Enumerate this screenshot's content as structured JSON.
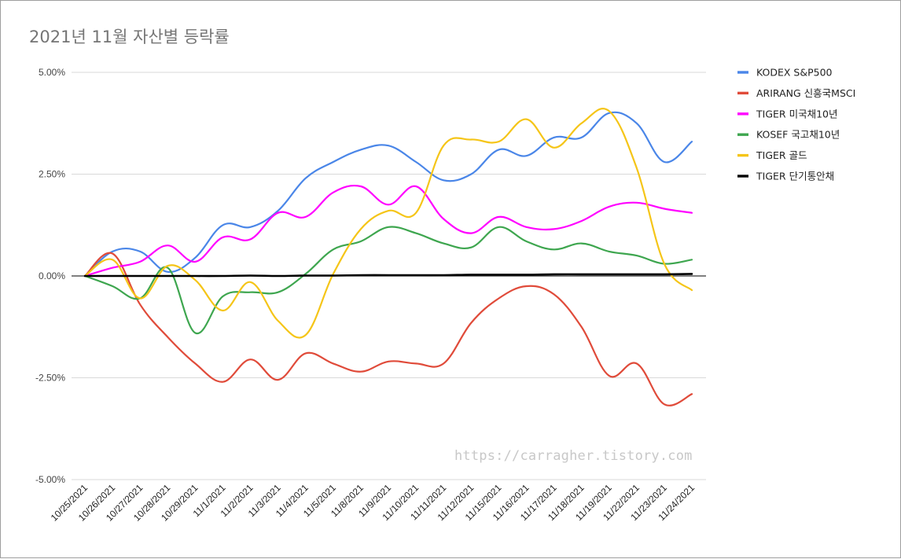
{
  "chart_data": {
    "type": "line",
    "title": "2021년 11월 자산별 등락률",
    "x": [
      "10/25/2021",
      "10/26/2021",
      "10/27/2021",
      "10/28/2021",
      "10/29/2021",
      "11/1/2021",
      "11/2/2021",
      "11/3/2021",
      "11/4/2021",
      "11/5/2021",
      "11/8/2021",
      "11/9/2021",
      "11/10/2021",
      "11/11/2021",
      "11/12/2021",
      "11/15/2021",
      "11/16/2021",
      "11/17/2021",
      "11/18/2021",
      "11/19/2021",
      "11/22/2021",
      "11/23/2021",
      "11/24/2021"
    ],
    "yticks": [
      "5.00%",
      "2.50%",
      "0.00%",
      "-2.50%",
      "-5.00%"
    ],
    "ylim": [
      -5,
      5
    ],
    "grid": true,
    "legend_position": "right",
    "series": [
      {
        "name": "KODEX S&P500",
        "color": "#4a86e8",
        "values": [
          0,
          0.6,
          0.6,
          0.1,
          0.45,
          1.25,
          1.2,
          1.6,
          2.4,
          2.8,
          3.1,
          3.2,
          2.8,
          2.35,
          2.5,
          3.1,
          2.95,
          3.4,
          3.4,
          4.0,
          3.75,
          2.8,
          3.3
        ]
      },
      {
        "name": "ARIRANG 신흥국MSCI",
        "color": "#e04b3a",
        "values": [
          0,
          0.55,
          -0.7,
          -1.5,
          -2.15,
          -2.6,
          -2.05,
          -2.55,
          -1.9,
          -2.15,
          -2.35,
          -2.1,
          -2.15,
          -2.15,
          -1.15,
          -0.55,
          -0.25,
          -0.45,
          -1.25,
          -2.45,
          -2.15,
          -3.15,
          -2.9
        ]
      },
      {
        "name": "TIGER 미국채10년",
        "color": "#ff00ff",
        "values": [
          0,
          0.2,
          0.35,
          0.75,
          0.35,
          0.95,
          0.9,
          1.55,
          1.45,
          2.05,
          2.2,
          1.75,
          2.2,
          1.4,
          1.05,
          1.45,
          1.2,
          1.15,
          1.35,
          1.7,
          1.8,
          1.65,
          1.55
        ]
      },
      {
        "name": "KOSEF 국고채10년",
        "color": "#3ea64f",
        "values": [
          0,
          -0.25,
          -0.55,
          0.2,
          -1.4,
          -0.5,
          -0.4,
          -0.4,
          0.05,
          0.65,
          0.85,
          1.2,
          1.05,
          0.8,
          0.7,
          1.2,
          0.85,
          0.65,
          0.8,
          0.6,
          0.5,
          0.3,
          0.4
        ]
      },
      {
        "name": "TIGER 골드",
        "color": "#f5c518",
        "values": [
          0,
          0.4,
          -0.55,
          0.25,
          -0.1,
          -0.85,
          -0.15,
          -1.1,
          -1.45,
          0.05,
          1.15,
          1.6,
          1.55,
          3.2,
          3.35,
          3.3,
          3.85,
          3.15,
          3.75,
          4.05,
          2.65,
          0.3,
          -0.35
        ]
      },
      {
        "name": "TIGER 단기통안채",
        "color": "#000000",
        "values": [
          0,
          0.0,
          0.0,
          0.0,
          0.0,
          0.0,
          0.01,
          0.0,
          0.01,
          0.01,
          0.02,
          0.02,
          0.02,
          0.02,
          0.03,
          0.03,
          0.03,
          0.04,
          0.04,
          0.04,
          0.04,
          0.04,
          0.05
        ]
      }
    ]
  },
  "watermark": "https://carragher.tistory.com"
}
